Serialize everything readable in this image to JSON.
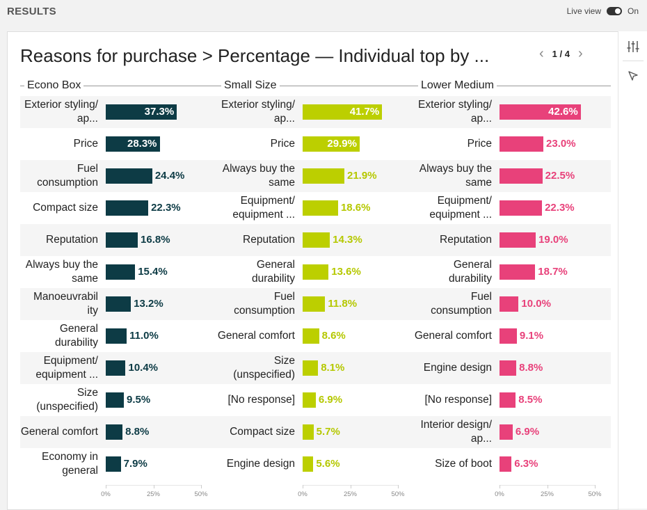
{
  "header": {
    "title": "RESULTS",
    "live_view_label": "Live view",
    "live_view_state": "On"
  },
  "chart_title": "Reasons for purchase > Percentage — Individual top by ...",
  "pager": {
    "prev_icon": "chevron-left-icon",
    "next_icon": "chevron-right-icon",
    "text": "1 / 4"
  },
  "side_tools": {
    "settings_icon": "sliders-icon",
    "select_icon": "cursor-arrow-icon"
  },
  "chart_data": [
    {
      "type": "bar",
      "title": "Econo Box",
      "color": "#0d3b45",
      "label_color": "#0d3b45",
      "categories": [
        "Exterior styling/ ap...",
        "Price",
        "Fuel consumption",
        "Compact size",
        "Reputation",
        "Always buy the same",
        "Manoeuvrabil ity",
        "General durability",
        "Equipment/ equipment ...",
        "Size (unspecified)",
        "General comfort",
        "Economy in general"
      ],
      "values": [
        37.3,
        28.3,
        24.4,
        22.3,
        16.8,
        15.4,
        13.2,
        11.0,
        10.4,
        9.5,
        8.8,
        7.9
      ],
      "value_labels": [
        "37.3%",
        "28.3%",
        "24.4%",
        "22.3%",
        "16.8%",
        "15.4%",
        "13.2%",
        "11.0%",
        "10.4%",
        "9.5%",
        "8.8%",
        "7.9%"
      ],
      "xlim": [
        0,
        50
      ],
      "ticks": [
        "0%",
        "25%",
        "50%"
      ]
    },
    {
      "type": "bar",
      "title": "Small Size",
      "color": "#bccf00",
      "label_color": "#b5c800",
      "categories": [
        "Exterior styling/ ap...",
        "Price",
        "Always buy the same",
        "Equipment/ equipment ...",
        "Reputation",
        "General durability",
        "Fuel consumption",
        "General comfort",
        "Size (unspecified)",
        "[No response]",
        "Compact size",
        "Engine design"
      ],
      "values": [
        41.7,
        29.9,
        21.9,
        18.6,
        14.3,
        13.6,
        11.8,
        8.6,
        8.1,
        6.9,
        5.7,
        5.6
      ],
      "value_labels": [
        "41.7%",
        "29.9%",
        "21.9%",
        "18.6%",
        "14.3%",
        "13.6%",
        "11.8%",
        "8.6%",
        "8.1%",
        "6.9%",
        "5.7%",
        "5.6%"
      ],
      "xlim": [
        0,
        50
      ],
      "ticks": [
        "0%",
        "25%",
        "50%"
      ]
    },
    {
      "type": "bar",
      "title": "Lower Medium",
      "color": "#e8417a",
      "label_color": "#e8417a",
      "categories": [
        "Exterior styling/ ap...",
        "Price",
        "Always buy the same",
        "Equipment/ equipment ...",
        "Reputation",
        "General durability",
        "Fuel consumption",
        "General comfort",
        "Engine design",
        "[No response]",
        "Interior design/ ap...",
        "Size of boot"
      ],
      "values": [
        42.6,
        23.0,
        22.5,
        22.3,
        19.0,
        18.7,
        10.0,
        9.1,
        8.8,
        8.5,
        6.9,
        6.3
      ],
      "value_labels": [
        "42.6%",
        "23.0%",
        "22.5%",
        "22.3%",
        "19.0%",
        "18.7%",
        "10.0%",
        "9.1%",
        "8.8%",
        "8.5%",
        "6.9%",
        "6.3%"
      ],
      "xlim": [
        0,
        50
      ],
      "ticks": [
        "0%",
        "25%",
        "50%"
      ]
    }
  ]
}
